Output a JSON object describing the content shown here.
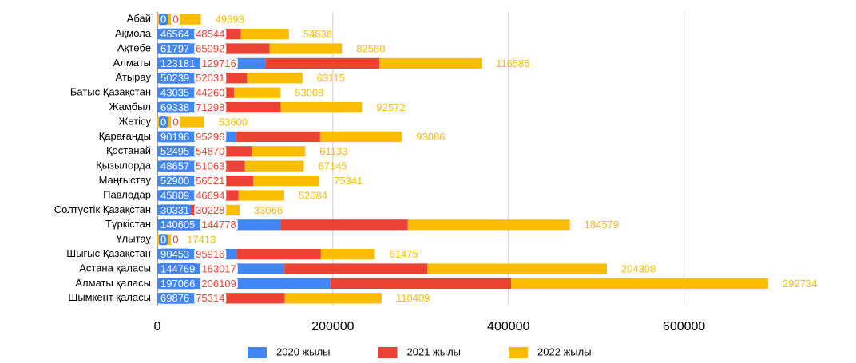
{
  "chart_data": {
    "type": "stacked-bar-horizontal",
    "categories": [
      "Абай",
      "Ақмола",
      "Ақтөбе",
      "Алматы",
      "Атырау",
      "Батыс Қазақстан",
      "Жамбыл",
      "Жетісу",
      "Қарағанды",
      "Қостанай",
      "Қызылорда",
      "Маңғыстау",
      "Павлодар",
      "Солтүстік Қазақстан",
      "Түркістан",
      "Ұлытау",
      "Шығыс Қазақстан",
      "Астана қаласы",
      "Алматы қаласы",
      "Шымкент қаласы"
    ],
    "series": [
      {
        "name": "2020 жылы",
        "color": "#4285f4",
        "values": [
          0,
          46564,
          61797,
          123181,
          50239,
          43035,
          69338,
          0,
          90196,
          52495,
          48657,
          52900,
          45809,
          30331,
          140605,
          0,
          90453,
          144769,
          197066,
          69876
        ]
      },
      {
        "name": "2021 жылы",
        "color": "#ea4335",
        "values": [
          0,
          48544,
          65992,
          129716,
          52031,
          44260,
          71298,
          0,
          95296,
          54870,
          51063,
          56521,
          46694,
          30228,
          144778,
          0,
          95916,
          163017,
          206109,
          75314
        ]
      },
      {
        "name": "2022 жылы",
        "color": "#fbbc04",
        "values": [
          49693,
          54838,
          82580,
          116585,
          63115,
          53008,
          92572,
          53600,
          93086,
          61133,
          67145,
          75341,
          52084,
          33066,
          184579,
          17413,
          61475,
          204308,
          292734,
          110409
        ]
      }
    ],
    "xlim": [
      0,
      785000
    ],
    "xticks": [
      0,
      200000,
      400000,
      600000
    ],
    "grid": true,
    "legend": "bottom"
  }
}
